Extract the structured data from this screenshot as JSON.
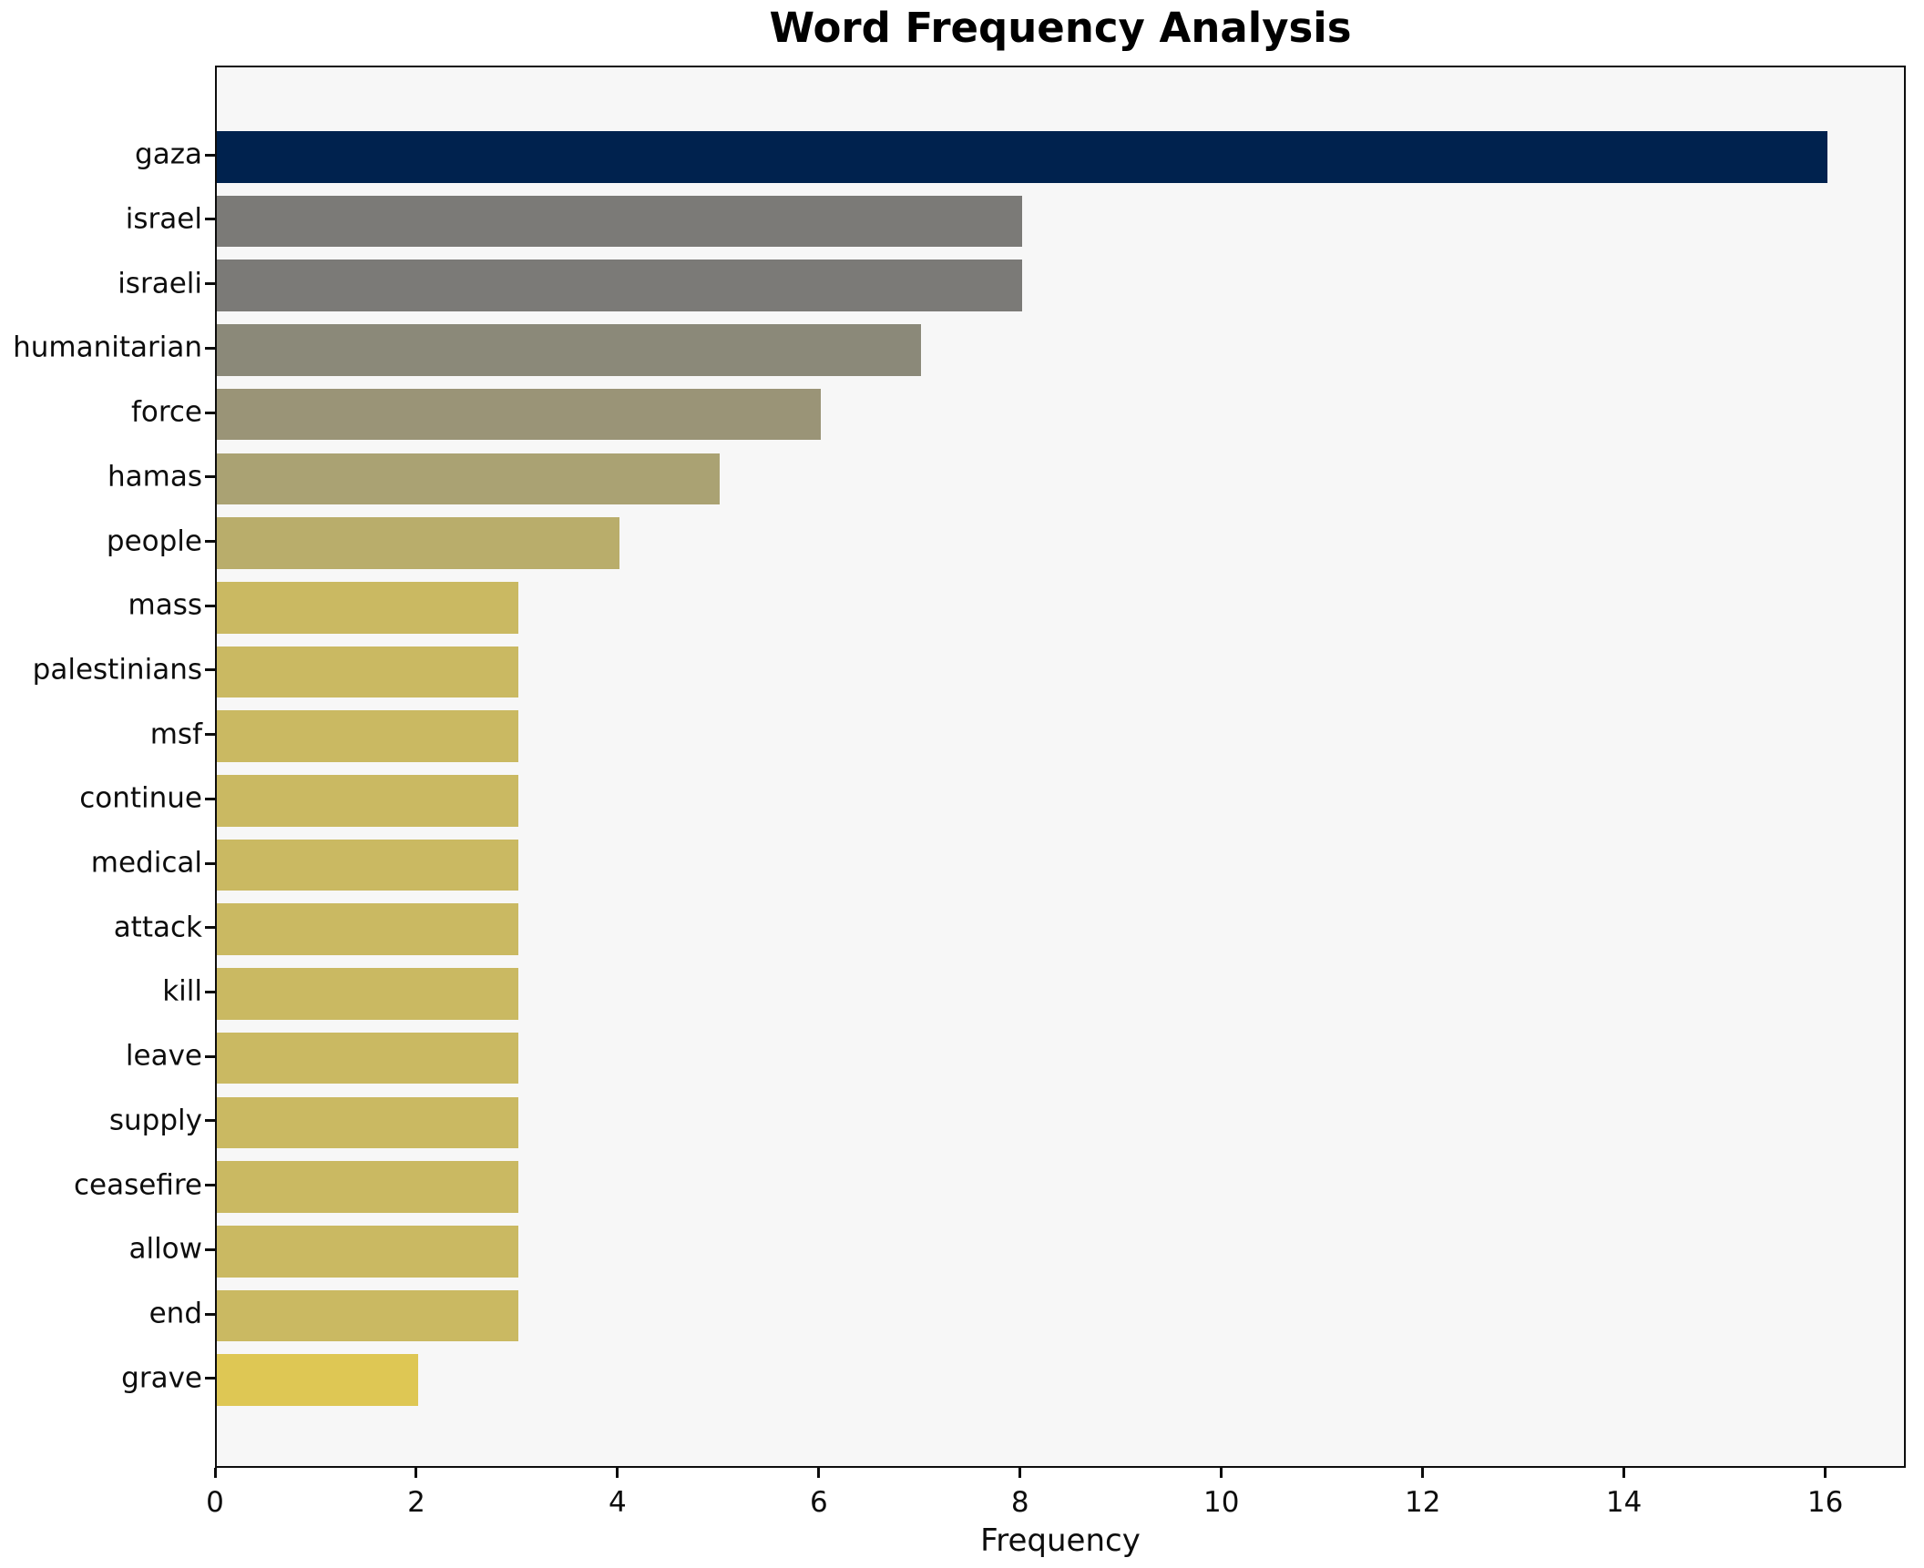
{
  "chart_data": {
    "type": "bar",
    "orientation": "horizontal",
    "title": "Word Frequency Analysis",
    "xlabel": "Frequency",
    "ylabel": "",
    "categories": [
      "gaza",
      "israel",
      "israeli",
      "humanitarian",
      "force",
      "hamas",
      "people",
      "mass",
      "palestinians",
      "msf",
      "continue",
      "medical",
      "attack",
      "kill",
      "leave",
      "supply",
      "ceasefire",
      "allow",
      "end",
      "grave"
    ],
    "values": [
      16,
      8,
      8,
      7,
      6,
      5,
      4,
      3,
      3,
      3,
      3,
      3,
      3,
      3,
      3,
      3,
      3,
      3,
      3,
      2
    ],
    "bar_colors": [
      "#00224e",
      "#7b7a77",
      "#7b7a77",
      "#8b8979",
      "#9a9477",
      "#aaa273",
      "#b9ad6b",
      "#cab962",
      "#cab962",
      "#cab962",
      "#cab962",
      "#cab962",
      "#cab962",
      "#cab962",
      "#cab962",
      "#cab962",
      "#cab962",
      "#cab962",
      "#cab962",
      "#dec754"
    ],
    "x_ticks": [
      0,
      2,
      4,
      6,
      8,
      10,
      12,
      14,
      16
    ],
    "xlim": [
      0,
      16.8
    ],
    "grid": false,
    "legend": null,
    "plot_bg_color": "#f7f7f7",
    "axis_color": "#0d0d0d",
    "bar_height_fraction": 0.8
  }
}
